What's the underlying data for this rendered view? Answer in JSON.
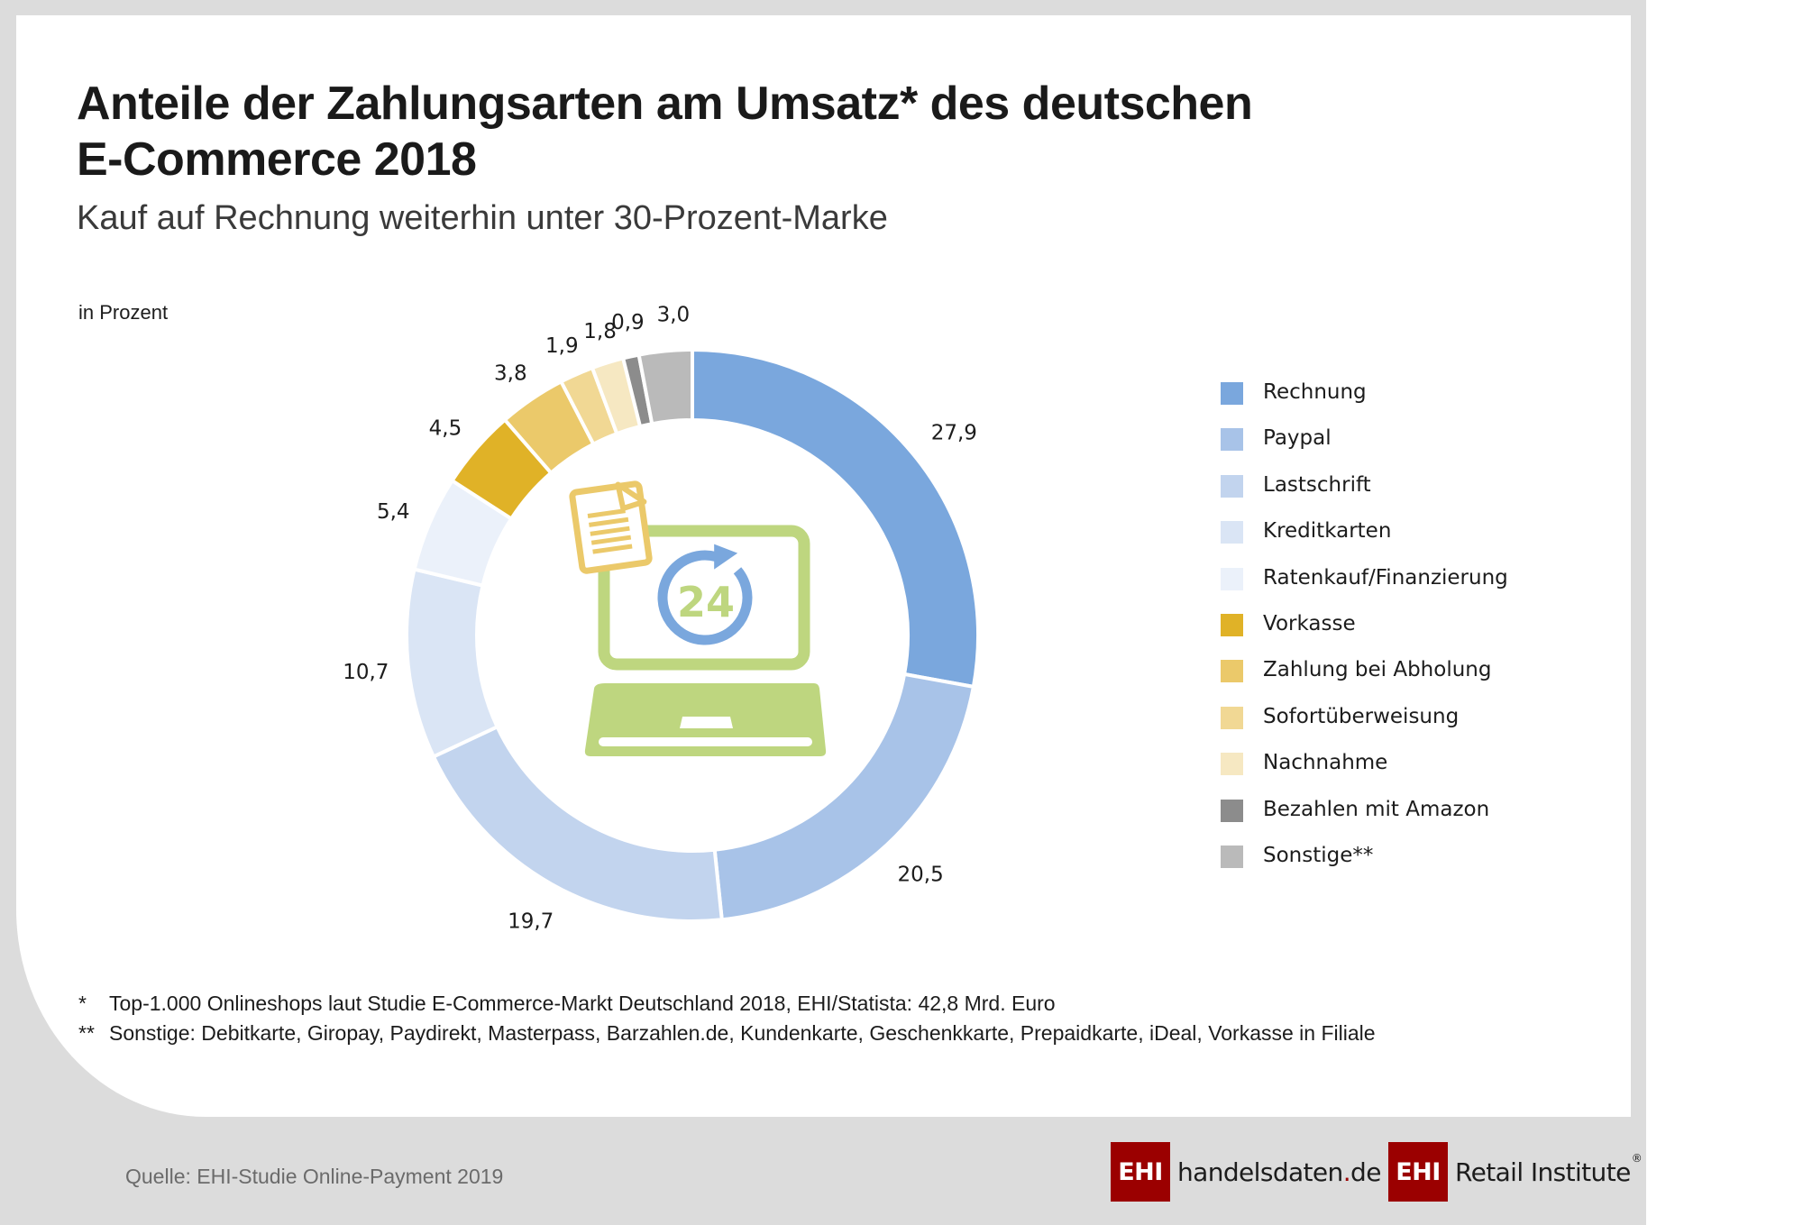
{
  "header": {
    "title_line1": "Anteile der Zahlungsarten am Umsatz* des deutschen",
    "title_line2": "E-Commerce 2018",
    "subtitle": "Kauf auf Rechnung weiterhin unter 30-Prozent-Marke",
    "unit_label": "in Prozent"
  },
  "chart_data": {
    "type": "pie",
    "variant": "donut",
    "title": "Anteile der Zahlungsarten am Umsatz* des deutschen E-Commerce 2018",
    "subtitle": "Kauf auf Rechnung weiterhin unter 30-Prozent-Marke",
    "unit": "in Prozent",
    "start_angle": "12 o'clock",
    "direction": "clockwise",
    "legend_position": "right",
    "center_icon": "laptop-24h-invoice-icon",
    "slices": [
      {
        "label": "Rechnung",
        "value": 27.9,
        "display": "27,9",
        "color": "#7aa7dd"
      },
      {
        "label": "Paypal",
        "value": 20.5,
        "display": "20,5",
        "color": "#a8c3e8"
      },
      {
        "label": "Lastschrift",
        "value": 19.7,
        "display": "19,7",
        "color": "#c2d4ee"
      },
      {
        "label": "Kreditkarten",
        "value": 10.7,
        "display": "10,7",
        "color": "#dae5f5"
      },
      {
        "label": "Ratenkauf/Finanzierung",
        "value": 5.4,
        "display": "5,4",
        "color": "#ebf1fa"
      },
      {
        "label": "Vorkasse",
        "value": 4.5,
        "display": "4,5",
        "color": "#e0b227"
      },
      {
        "label": "Zahlung bei Abholung",
        "value": 3.8,
        "display": "3,8",
        "color": "#ebc96a"
      },
      {
        "label": "Sofortüberweisung",
        "value": 1.9,
        "display": "1,9",
        "color": "#f1d894"
      },
      {
        "label": "Nachnahme",
        "value": 1.8,
        "display": "1,8",
        "color": "#f6e8c2"
      },
      {
        "label": "Bezahlen mit Amazon",
        "value": 0.9,
        "display": "0,9",
        "color": "#8c8c8c"
      },
      {
        "label": "Sonstige**",
        "value": 3.0,
        "display": "3,0",
        "color": "#bababa"
      }
    ]
  },
  "footnotes": [
    {
      "mark": "*",
      "text": "Top-1.000 Onlineshops laut Studie E-Commerce-Markt Deutschland 2018, EHI/Statista: 42,8 Mrd. Euro"
    },
    {
      "mark": "**",
      "text": "Sonstige: Debitkarte, Giropay, Paydirekt, Masterpass, Barzahlen.de, Kundenkarte, Geschenkkarte, Prepaidkarte, iDeal, Vorkasse in Filiale"
    }
  ],
  "source": "Quelle: EHI-Studie Online-Payment 2019",
  "logos": {
    "box_text": "EHI",
    "handelsdaten_name": "handelsdaten",
    "handelsdaten_dot": ".",
    "handelsdaten_tld": "de",
    "retail_text": "Retail Institute",
    "registered": "®",
    "brand_color": "#9b0000"
  },
  "icon_colors": {
    "laptop": "#bed67f",
    "clock_arrow": "#7aa7dd",
    "document": "#ebc96a"
  }
}
